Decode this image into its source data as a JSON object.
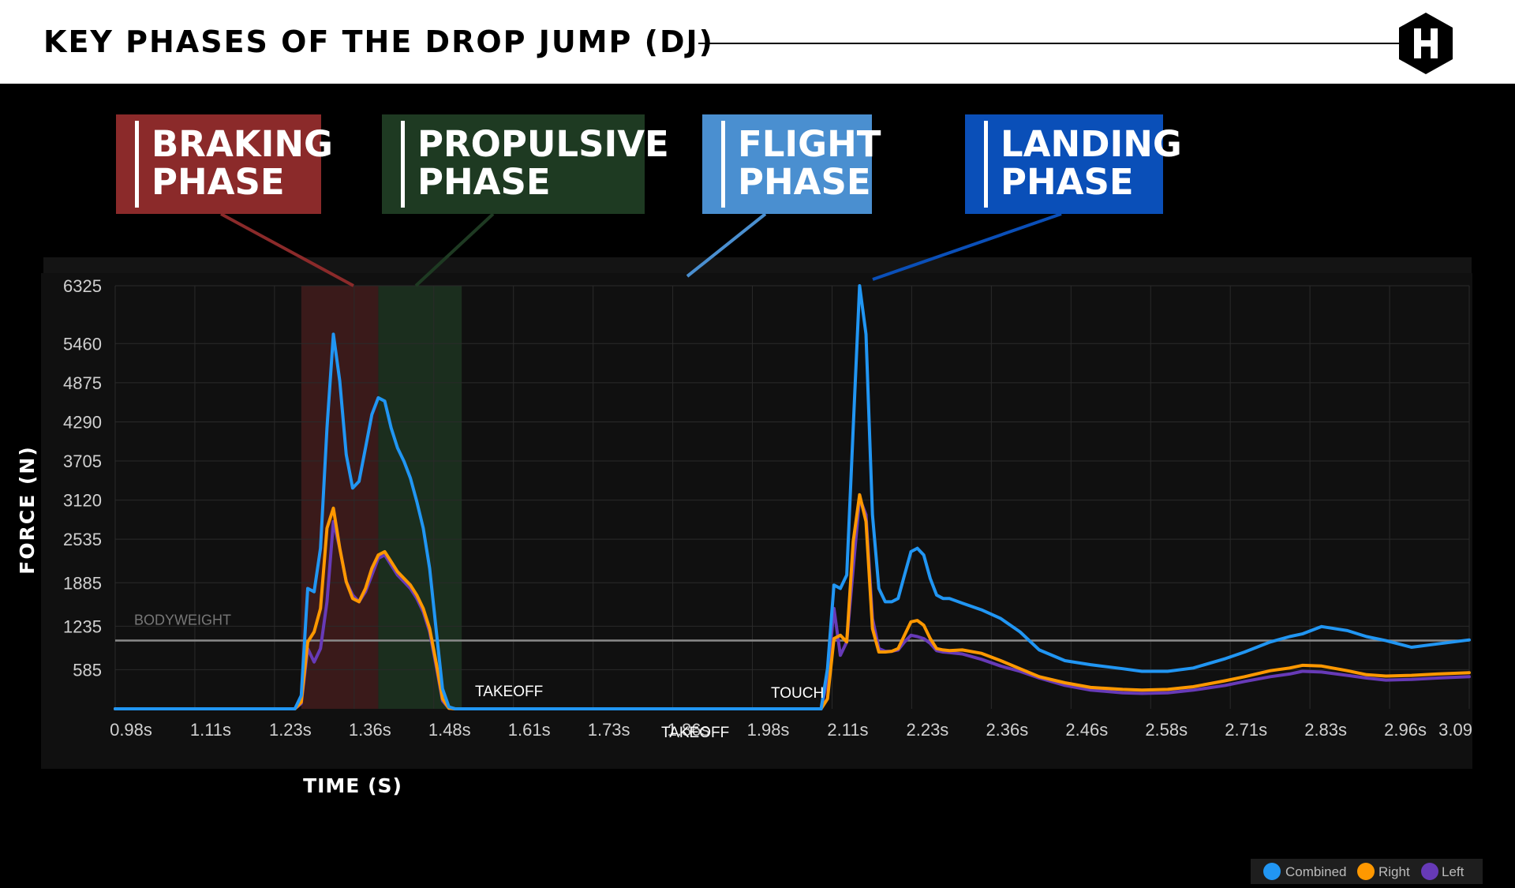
{
  "header": {
    "title": "KEY PHASES OF THE DROP JUMP (DJ)"
  },
  "colors": {
    "combined": "#2196f3",
    "right": "#ff9800",
    "left": "#673ab7",
    "braking": "#8b2a2a",
    "propulsive": "#1e3a22",
    "flight": "#4a8fd0",
    "landing": "#0a4fb8"
  },
  "phases": [
    {
      "name": "braking",
      "label": "BRAKING\nPHASE"
    },
    {
      "name": "propulsive",
      "label": "PROPULSIVE\nPHASE"
    },
    {
      "name": "flight",
      "label": "FLIGHT\nPHASE"
    },
    {
      "name": "landing",
      "label": "LANDING\nPHASE"
    }
  ],
  "legend": {
    "combined": "Combined",
    "right": "Right",
    "left": "Left"
  },
  "chart_data": {
    "type": "line",
    "xlabel": "TIME (S)",
    "ylabel": "FORCE (N)",
    "xlim": [
      0.98,
      3.09
    ],
    "ylim": [
      0,
      6325
    ],
    "x_ticks": [
      "0.98s",
      "1.11s",
      "1.23s",
      "1.36s",
      "1.48s",
      "1.61s",
      "1.73s",
      "1.86s",
      "1.98s",
      "2.11s",
      "2.23s",
      "2.36s",
      "2.46s",
      "2.58s",
      "2.71s",
      "2.83s",
      "2.96s",
      "3.09"
    ],
    "y_ticks": [
      585,
      1235,
      1885,
      2535,
      3120,
      3705,
      4290,
      4875,
      5460,
      6325
    ],
    "bodyweight": {
      "label": "BODYWEIGHT",
      "value": 1020
    },
    "regions": [
      {
        "name": "braking",
        "x": [
          1.27,
          1.39
        ]
      },
      {
        "name": "propulsive",
        "x": [
          1.39,
          1.52
        ]
      }
    ],
    "annotations": [
      {
        "text": "TAKEOFF",
        "x": 1.54
      },
      {
        "text": "TAKEOFF",
        "x": 1.86
      },
      {
        "text": "TOUCH",
        "x": 2.02
      }
    ],
    "series": [
      {
        "name": "Combined",
        "x": [
          0.98,
          1.26,
          1.27,
          1.28,
          1.29,
          1.3,
          1.31,
          1.32,
          1.33,
          1.34,
          1.35,
          1.36,
          1.37,
          1.38,
          1.39,
          1.4,
          1.41,
          1.42,
          1.43,
          1.44,
          1.45,
          1.46,
          1.47,
          1.48,
          1.49,
          1.5,
          1.51,
          1.52,
          1.55,
          1.7,
          1.9,
          2.08,
          2.09,
          2.1,
          2.11,
          2.12,
          2.13,
          2.14,
          2.15,
          2.16,
          2.17,
          2.18,
          2.19,
          2.2,
          2.21,
          2.22,
          2.23,
          2.24,
          2.25,
          2.26,
          2.27,
          2.28,
          2.3,
          2.33,
          2.36,
          2.39,
          2.42,
          2.46,
          2.5,
          2.55,
          2.58,
          2.62,
          2.66,
          2.71,
          2.74,
          2.78,
          2.81,
          2.83,
          2.86,
          2.9,
          2.93,
          2.96,
          3.0,
          3.04,
          3.09
        ],
        "y": [
          0,
          0,
          200,
          1800,
          1750,
          2400,
          4200,
          5600,
          4900,
          3800,
          3300,
          3400,
          3900,
          4400,
          4650,
          4600,
          4200,
          3900,
          3700,
          3450,
          3100,
          2700,
          2100,
          1200,
          300,
          30,
          0,
          0,
          0,
          0,
          0,
          0,
          600,
          1850,
          1800,
          2000,
          4200,
          6325,
          5600,
          2900,
          1800,
          1600,
          1600,
          1650,
          2000,
          2350,
          2400,
          2300,
          1950,
          1700,
          1650,
          1650,
          1580,
          1480,
          1350,
          1150,
          880,
          720,
          660,
          600,
          560,
          560,
          610,
          750,
          850,
          1000,
          1080,
          1120,
          1230,
          1170,
          1080,
          1020,
          920,
          970,
          1030
        ]
      },
      {
        "name": "Right",
        "x": [
          0.98,
          1.26,
          1.27,
          1.28,
          1.29,
          1.3,
          1.31,
          1.32,
          1.33,
          1.34,
          1.35,
          1.36,
          1.37,
          1.38,
          1.39,
          1.4,
          1.41,
          1.42,
          1.43,
          1.44,
          1.45,
          1.46,
          1.47,
          1.48,
          1.49,
          1.5,
          1.51,
          1.52,
          1.55,
          1.7,
          1.9,
          2.08,
          2.09,
          2.1,
          2.11,
          2.12,
          2.13,
          2.14,
          2.15,
          2.16,
          2.17,
          2.18,
          2.19,
          2.2,
          2.21,
          2.22,
          2.23,
          2.24,
          2.25,
          2.26,
          2.27,
          2.28,
          2.3,
          2.33,
          2.36,
          2.39,
          2.42,
          2.46,
          2.5,
          2.55,
          2.58,
          2.62,
          2.66,
          2.71,
          2.74,
          2.78,
          2.81,
          2.83,
          2.86,
          2.9,
          2.93,
          2.96,
          3.0,
          3.04,
          3.09
        ],
        "y": [
          0,
          0,
          100,
          1000,
          1150,
          1500,
          2700,
          3000,
          2400,
          1900,
          1650,
          1600,
          1800,
          2100,
          2300,
          2350,
          2200,
          2050,
          1950,
          1850,
          1700,
          1500,
          1200,
          700,
          150,
          10,
          0,
          0,
          0,
          0,
          0,
          0,
          150,
          1050,
          1100,
          1000,
          2500,
          3200,
          2800,
          1200,
          850,
          850,
          860,
          900,
          1100,
          1300,
          1320,
          1250,
          1050,
          900,
          880,
          870,
          880,
          830,
          720,
          600,
          480,
          390,
          320,
          290,
          280,
          290,
          330,
          420,
          480,
          570,
          610,
          650,
          640,
          570,
          510,
          490,
          500,
          520,
          540
        ]
      },
      {
        "name": "Left",
        "x": [
          0.98,
          1.26,
          1.27,
          1.28,
          1.29,
          1.3,
          1.31,
          1.32,
          1.33,
          1.34,
          1.35,
          1.36,
          1.37,
          1.38,
          1.39,
          1.4,
          1.41,
          1.42,
          1.43,
          1.44,
          1.45,
          1.46,
          1.47,
          1.48,
          1.49,
          1.5,
          1.51,
          1.52,
          1.55,
          1.7,
          1.9,
          2.08,
          2.09,
          2.1,
          2.11,
          2.12,
          2.13,
          2.14,
          2.15,
          2.16,
          2.17,
          2.18,
          2.19,
          2.2,
          2.21,
          2.22,
          2.23,
          2.24,
          2.25,
          2.26,
          2.27,
          2.28,
          2.3,
          2.33,
          2.36,
          2.39,
          2.42,
          2.46,
          2.5,
          2.55,
          2.58,
          2.62,
          2.66,
          2.71,
          2.74,
          2.78,
          2.81,
          2.83,
          2.86,
          2.9,
          2.93,
          2.96,
          3.0,
          3.04,
          3.09
        ],
        "y": [
          0,
          0,
          80,
          900,
          700,
          900,
          1600,
          2800,
          2400,
          1900,
          1700,
          1600,
          1750,
          2000,
          2250,
          2300,
          2150,
          2000,
          1900,
          1800,
          1650,
          1450,
          1150,
          650,
          120,
          10,
          0,
          0,
          0,
          0,
          0,
          0,
          450,
          1500,
          800,
          1000,
          2100,
          3150,
          2900,
          1350,
          900,
          860,
          860,
          880,
          1000,
          1100,
          1080,
          1050,
          980,
          870,
          850,
          840,
          820,
          740,
          640,
          560,
          460,
          350,
          280,
          240,
          230,
          240,
          280,
          350,
          410,
          480,
          520,
          560,
          550,
          500,
          460,
          430,
          440,
          460,
          480
        ]
      }
    ]
  }
}
